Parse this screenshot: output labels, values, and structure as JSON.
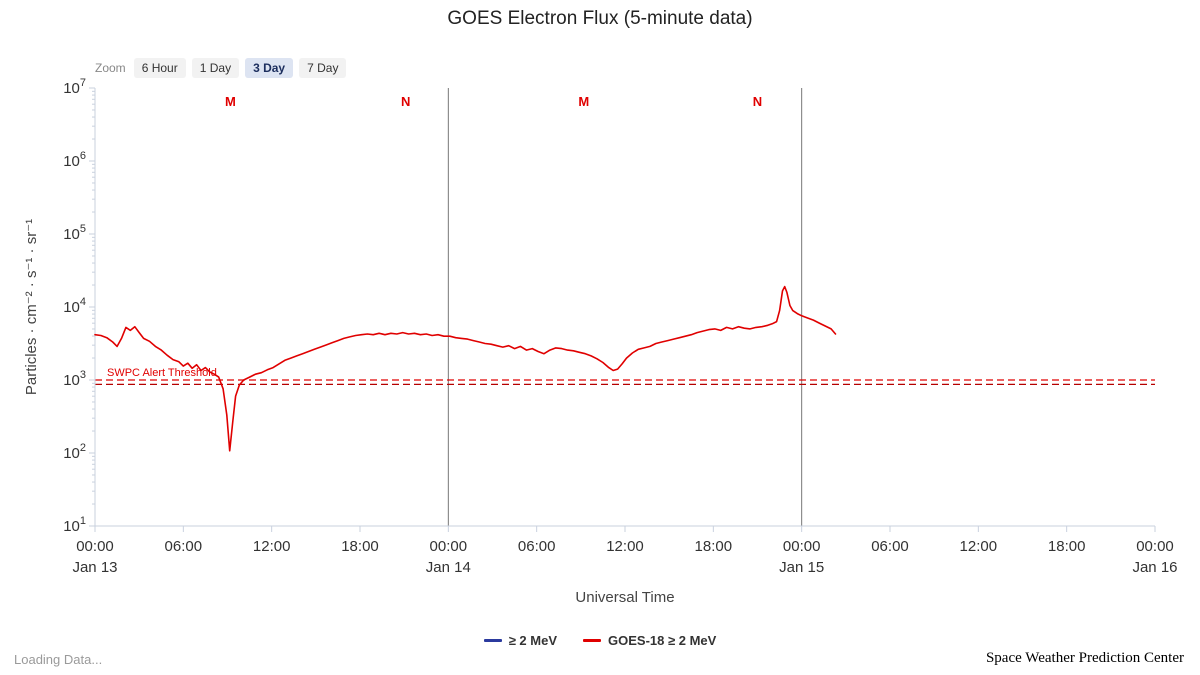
{
  "zoom_toolbar": {
    "label": "Zoom",
    "buttons": [
      "6 Hour",
      "1 Day",
      "3 Day",
      "7 Day"
    ],
    "selected": "3 Day"
  },
  "footer": {
    "left": "Loading Data...",
    "right": "Space Weather Prediction Center"
  },
  "chart_data": {
    "type": "line",
    "title": "GOES Electron Flux (5-minute data)",
    "xlabel": "Universal Time",
    "ylabel": "Particles · cm⁻² · s⁻¹ · sr⁻¹",
    "y_scale": "log10",
    "ylim_exponents": [
      1,
      7
    ],
    "y_tick_exponents": [
      7,
      6,
      5,
      4,
      3,
      2,
      1
    ],
    "x_unit": "hours since Jan 13 00:00 UT",
    "xlim_hours": [
      0,
      72
    ],
    "grid": false,
    "legend_position": "bottom",
    "x_ticks": [
      {
        "t": 0,
        "time": "00:00",
        "day": "Jan 13"
      },
      {
        "t": 6,
        "time": "06:00"
      },
      {
        "t": 12,
        "time": "12:00"
      },
      {
        "t": 18,
        "time": "18:00"
      },
      {
        "t": 24,
        "time": "00:00",
        "day": "Jan 14"
      },
      {
        "t": 30,
        "time": "06:00"
      },
      {
        "t": 36,
        "time": "12:00"
      },
      {
        "t": 42,
        "time": "18:00"
      },
      {
        "t": 48,
        "time": "00:00",
        "day": "Jan 15"
      },
      {
        "t": 54,
        "time": "06:00"
      },
      {
        "t": 60,
        "time": "12:00"
      },
      {
        "t": 66,
        "time": "18:00"
      },
      {
        "t": 72,
        "time": "00:00",
        "day": "Jan 16"
      }
    ],
    "day_boundary_lines_t": [
      24,
      48
    ],
    "top_markers": [
      {
        "label": "M",
        "t": 9.2
      },
      {
        "label": "N",
        "t": 21.1
      },
      {
        "label": "M",
        "t": 33.2
      },
      {
        "label": "N",
        "t": 45.0
      }
    ],
    "threshold": {
      "label": "SWPC Alert Threshold",
      "lines": [
        {
          "log10_value": 3.0,
          "color": "#e00000"
        },
        {
          "log10_value": 2.94,
          "color": "#b50000"
        }
      ]
    },
    "series": [
      {
        "name": "≥ 2 MeV",
        "color": "#2b3a9e",
        "points": []
      },
      {
        "name": "GOES-18 ≥ 2 MeV",
        "color": "#e00000",
        "points": [
          [
            0,
            3.62
          ],
          [
            0.4,
            3.61
          ],
          [
            0.8,
            3.58
          ],
          [
            1.2,
            3.52
          ],
          [
            1.5,
            3.46
          ],
          [
            1.8,
            3.57
          ],
          [
            2.1,
            3.72
          ],
          [
            2.4,
            3.68
          ],
          [
            2.7,
            3.73
          ],
          [
            3.0,
            3.65
          ],
          [
            3.3,
            3.57
          ],
          [
            3.7,
            3.53
          ],
          [
            4.1,
            3.46
          ],
          [
            4.5,
            3.41
          ],
          [
            4.9,
            3.34
          ],
          [
            5.3,
            3.28
          ],
          [
            5.7,
            3.25
          ],
          [
            6.0,
            3.19
          ],
          [
            6.3,
            3.23
          ],
          [
            6.6,
            3.16
          ],
          [
            6.9,
            3.21
          ],
          [
            7.2,
            3.13
          ],
          [
            7.5,
            3.17
          ],
          [
            7.8,
            3.11
          ],
          [
            8.1,
            3.08
          ],
          [
            8.4,
            3.04
          ],
          [
            8.7,
            2.88
          ],
          [
            8.95,
            2.52
          ],
          [
            9.15,
            2.03
          ],
          [
            9.35,
            2.42
          ],
          [
            9.55,
            2.78
          ],
          [
            9.8,
            2.93
          ],
          [
            10.1,
            3.0
          ],
          [
            10.5,
            3.04
          ],
          [
            10.9,
            3.08
          ],
          [
            11.3,
            3.1
          ],
          [
            11.7,
            3.14
          ],
          [
            12.1,
            3.17
          ],
          [
            12.5,
            3.22
          ],
          [
            12.9,
            3.27
          ],
          [
            13.3,
            3.3
          ],
          [
            13.7,
            3.33
          ],
          [
            14.1,
            3.36
          ],
          [
            14.5,
            3.39
          ],
          [
            14.9,
            3.42
          ],
          [
            15.3,
            3.45
          ],
          [
            15.7,
            3.48
          ],
          [
            16.1,
            3.51
          ],
          [
            16.5,
            3.54
          ],
          [
            16.9,
            3.57
          ],
          [
            17.3,
            3.59
          ],
          [
            17.7,
            3.61
          ],
          [
            18.1,
            3.62
          ],
          [
            18.5,
            3.63
          ],
          [
            18.9,
            3.62
          ],
          [
            19.3,
            3.64
          ],
          [
            19.7,
            3.62
          ],
          [
            20.1,
            3.64
          ],
          [
            20.5,
            3.63
          ],
          [
            20.9,
            3.65
          ],
          [
            21.3,
            3.63
          ],
          [
            21.7,
            3.64
          ],
          [
            22.1,
            3.62
          ],
          [
            22.5,
            3.63
          ],
          [
            22.9,
            3.61
          ],
          [
            23.3,
            3.62
          ],
          [
            23.7,
            3.6
          ],
          [
            24.1,
            3.6
          ],
          [
            24.5,
            3.58
          ],
          [
            24.9,
            3.57
          ],
          [
            25.3,
            3.56
          ],
          [
            25.7,
            3.54
          ],
          [
            26.1,
            3.52
          ],
          [
            26.5,
            3.5
          ],
          [
            26.9,
            3.49
          ],
          [
            27.3,
            3.47
          ],
          [
            27.7,
            3.45
          ],
          [
            28.1,
            3.47
          ],
          [
            28.5,
            3.43
          ],
          [
            28.9,
            3.46
          ],
          [
            29.3,
            3.41
          ],
          [
            29.7,
            3.43
          ],
          [
            30.1,
            3.39
          ],
          [
            30.5,
            3.36
          ],
          [
            30.9,
            3.41
          ],
          [
            31.3,
            3.44
          ],
          [
            31.7,
            3.43
          ],
          [
            32.1,
            3.41
          ],
          [
            32.5,
            3.4
          ],
          [
            32.9,
            3.38
          ],
          [
            33.3,
            3.36
          ],
          [
            33.7,
            3.33
          ],
          [
            34.1,
            3.29
          ],
          [
            34.5,
            3.24
          ],
          [
            34.9,
            3.17
          ],
          [
            35.2,
            3.13
          ],
          [
            35.5,
            3.15
          ],
          [
            35.8,
            3.22
          ],
          [
            36.1,
            3.3
          ],
          [
            36.5,
            3.37
          ],
          [
            36.9,
            3.42
          ],
          [
            37.3,
            3.44
          ],
          [
            37.7,
            3.46
          ],
          [
            38.1,
            3.5
          ],
          [
            38.5,
            3.52
          ],
          [
            38.9,
            3.54
          ],
          [
            39.3,
            3.56
          ],
          [
            39.7,
            3.58
          ],
          [
            40.1,
            3.6
          ],
          [
            40.5,
            3.62
          ],
          [
            40.9,
            3.65
          ],
          [
            41.3,
            3.67
          ],
          [
            41.7,
            3.69
          ],
          [
            42.1,
            3.7
          ],
          [
            42.5,
            3.68
          ],
          [
            42.9,
            3.72
          ],
          [
            43.3,
            3.7
          ],
          [
            43.7,
            3.73
          ],
          [
            44.1,
            3.71
          ],
          [
            44.5,
            3.7
          ],
          [
            44.9,
            3.72
          ],
          [
            45.3,
            3.73
          ],
          [
            45.7,
            3.75
          ],
          [
            46.0,
            3.77
          ],
          [
            46.3,
            3.8
          ],
          [
            46.5,
            3.95
          ],
          [
            46.7,
            4.22
          ],
          [
            46.85,
            4.28
          ],
          [
            47.0,
            4.2
          ],
          [
            47.2,
            4.02
          ],
          [
            47.4,
            3.95
          ],
          [
            47.7,
            3.91
          ],
          [
            48.0,
            3.88
          ],
          [
            48.4,
            3.85
          ],
          [
            48.8,
            3.82
          ],
          [
            49.2,
            3.78
          ],
          [
            49.6,
            3.74
          ],
          [
            50.0,
            3.7
          ],
          [
            50.3,
            3.63
          ]
        ]
      }
    ]
  }
}
